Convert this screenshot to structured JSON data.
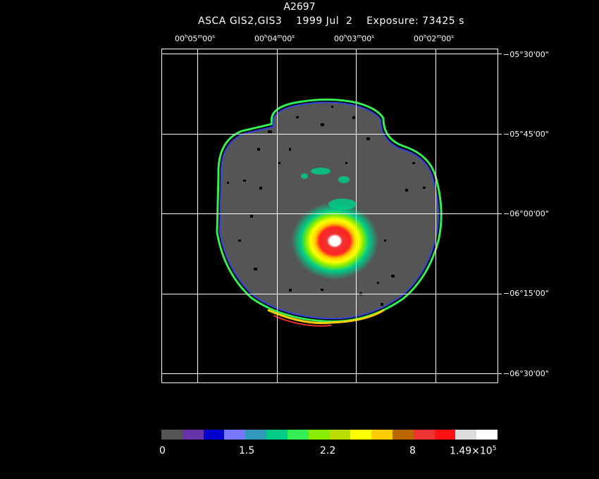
{
  "header": {
    "object": "A2697",
    "subtitle": "ASCA GIS2,GIS3    1999 Jul  2    Exposure: 73425 s"
  },
  "ra_axis": [
    {
      "h": "00",
      "m": "05",
      "s": "00"
    },
    {
      "h": "00",
      "m": "04",
      "s": "00"
    },
    {
      "h": "00",
      "m": "03",
      "s": "00"
    },
    {
      "h": "00",
      "m": "02",
      "s": "00"
    }
  ],
  "dec_axis": [
    "−05°30'00\"",
    "−05°45'00\"",
    "−06°00'00\"",
    "−06°15'00\"",
    "−06°30'00\""
  ],
  "colorbar": {
    "colors": [
      "#555555",
      "#6633aa",
      "#0000cc",
      "#7777ff",
      "#3399bb",
      "#00cc88",
      "#33ee55",
      "#88ee00",
      "#bbdd00",
      "#ffff00",
      "#ffcc00",
      "#bb6600",
      "#ee3333",
      "#ff1111",
      "#dddddd",
      "#ffffff"
    ],
    "labels": [
      {
        "text": "0"
      },
      {
        "text": "1.5"
      },
      {
        "text": "2.2"
      },
      {
        "text": "8"
      },
      {
        "text": "1.49×10",
        "sup": "5"
      }
    ]
  }
}
